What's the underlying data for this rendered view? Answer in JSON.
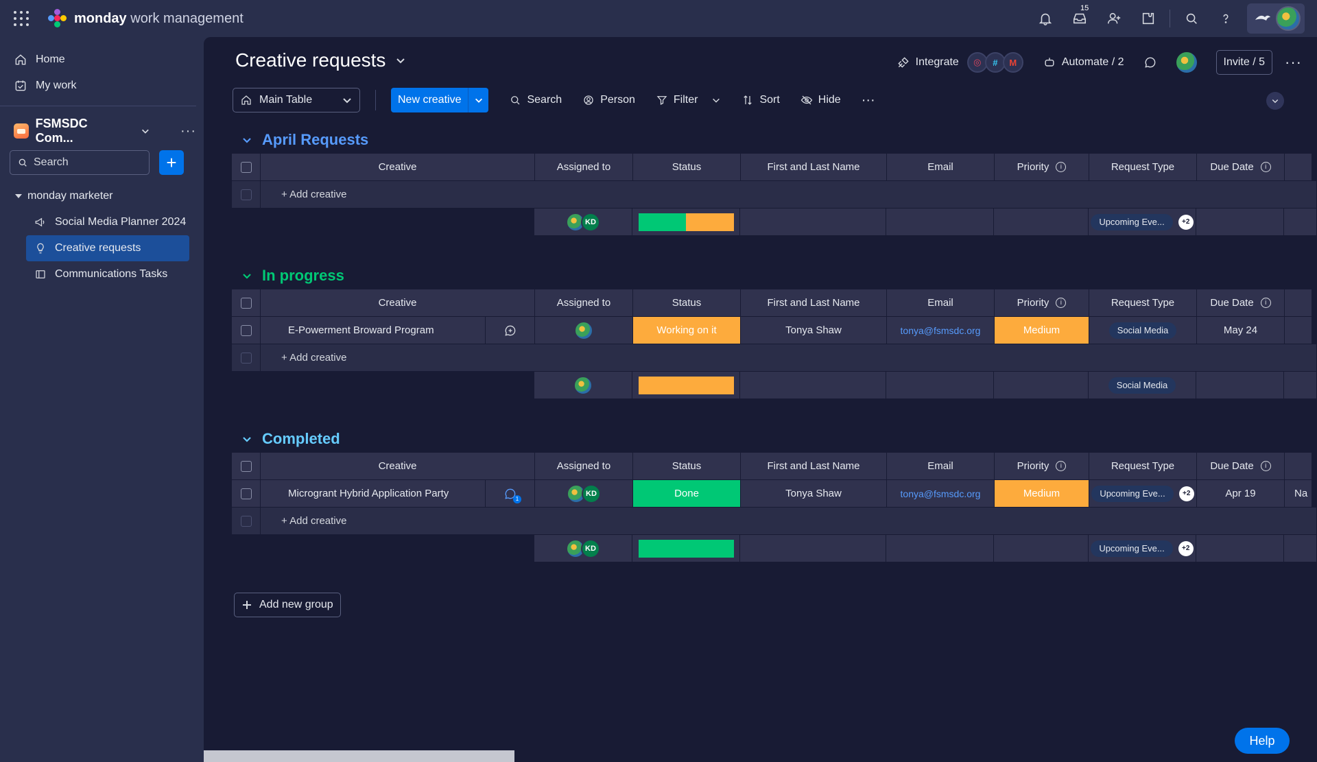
{
  "topbar": {
    "brand_bold": "monday",
    "brand_rest": " work management",
    "notifications_count": "15"
  },
  "sidebar": {
    "home": "Home",
    "my_work": "My work",
    "workspace_name": "FSMSDC Com...",
    "search_placeholder": "Search",
    "folder": "monday marketer",
    "boards": [
      {
        "label": "Social Media Planner 2024",
        "icon": "megaphone-icon"
      },
      {
        "label": "Creative requests",
        "icon": "lightbulb-icon",
        "active": true
      },
      {
        "label": "Communications Tasks",
        "icon": "board-icon"
      }
    ]
  },
  "board": {
    "title": "Creative requests",
    "integrate": "Integrate",
    "automate": "Automate / 2",
    "invite": "Invite / 5"
  },
  "toolbar": {
    "view": "Main Table",
    "new_item": "New creative",
    "search": "Search",
    "person": "Person",
    "filter": "Filter",
    "sort": "Sort",
    "hide": "Hide"
  },
  "columns": {
    "creative": "Creative",
    "assigned": "Assigned to",
    "status": "Status",
    "name": "First and Last Name",
    "email": "Email",
    "priority": "Priority",
    "request_type": "Request Type",
    "due_date": "Due Date"
  },
  "add_item": "+ Add creative",
  "groups": [
    {
      "title": "April Requests",
      "color": "#579bfc",
      "summary": {
        "request_type": "Upcoming Eve...",
        "extra": "+2"
      }
    },
    {
      "title": "In progress",
      "color": "#00c875",
      "row": {
        "name": "E-Powerment Broward Program",
        "status": "Working on it",
        "person_name": "Tonya Shaw",
        "email": "tonya@fsmsdc.org",
        "priority": "Medium",
        "request_type": "Social Media",
        "due": "May 24"
      },
      "summary": {
        "request_type": "Social Media"
      }
    },
    {
      "title": "Completed",
      "color": "#66ccff",
      "row": {
        "name": "Microgrant Hybrid Application Party",
        "update_count": "1",
        "assignee_initials": "KD",
        "status": "Done",
        "person_name": "Tonya Shaw",
        "email": "tonya@fsmsdc.org",
        "priority": "Medium",
        "request_type": "Upcoming Eve...",
        "extra": "+2",
        "due": "Apr 19",
        "overflow": "Na"
      },
      "summary": {
        "request_type": "Upcoming Eve...",
        "extra": "+2"
      }
    }
  ],
  "initials": "KD",
  "add_group": "Add new group",
  "help": "Help",
  "colors": {
    "working": "#fdab3d",
    "done": "#00c875",
    "medium": "#fdab3d",
    "accent": "#0073ea"
  }
}
